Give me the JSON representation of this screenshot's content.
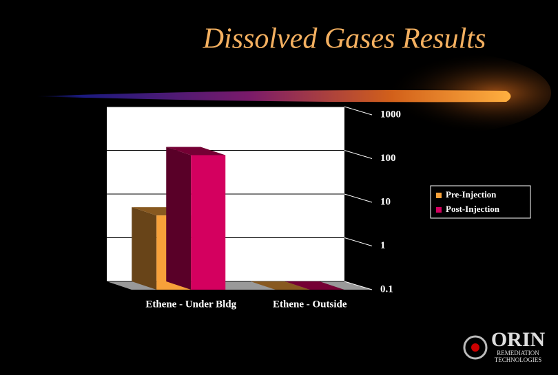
{
  "chart_data": {
    "type": "bar3d",
    "title": "Dissolved Gases Results",
    "categories": [
      "Ethene - Under Bldg",
      "Ethene - Outside"
    ],
    "series": [
      {
        "name": "Pre-Injection",
        "color": "#f7a13a",
        "values": [
          5,
          0.1
        ]
      },
      {
        "name": "Post-Injection",
        "color": "#d4005f",
        "values": [
          120,
          0.1
        ]
      }
    ],
    "ylim": [
      0.1,
      1000
    ],
    "yticks": [
      0.1,
      1,
      10,
      100,
      1000
    ],
    "log_scale": true,
    "grid": true,
    "legend": "right"
  },
  "logo": {
    "name": "ORIN",
    "line1": "REMEDIATION",
    "line2": "TECHNOLOGIES"
  }
}
